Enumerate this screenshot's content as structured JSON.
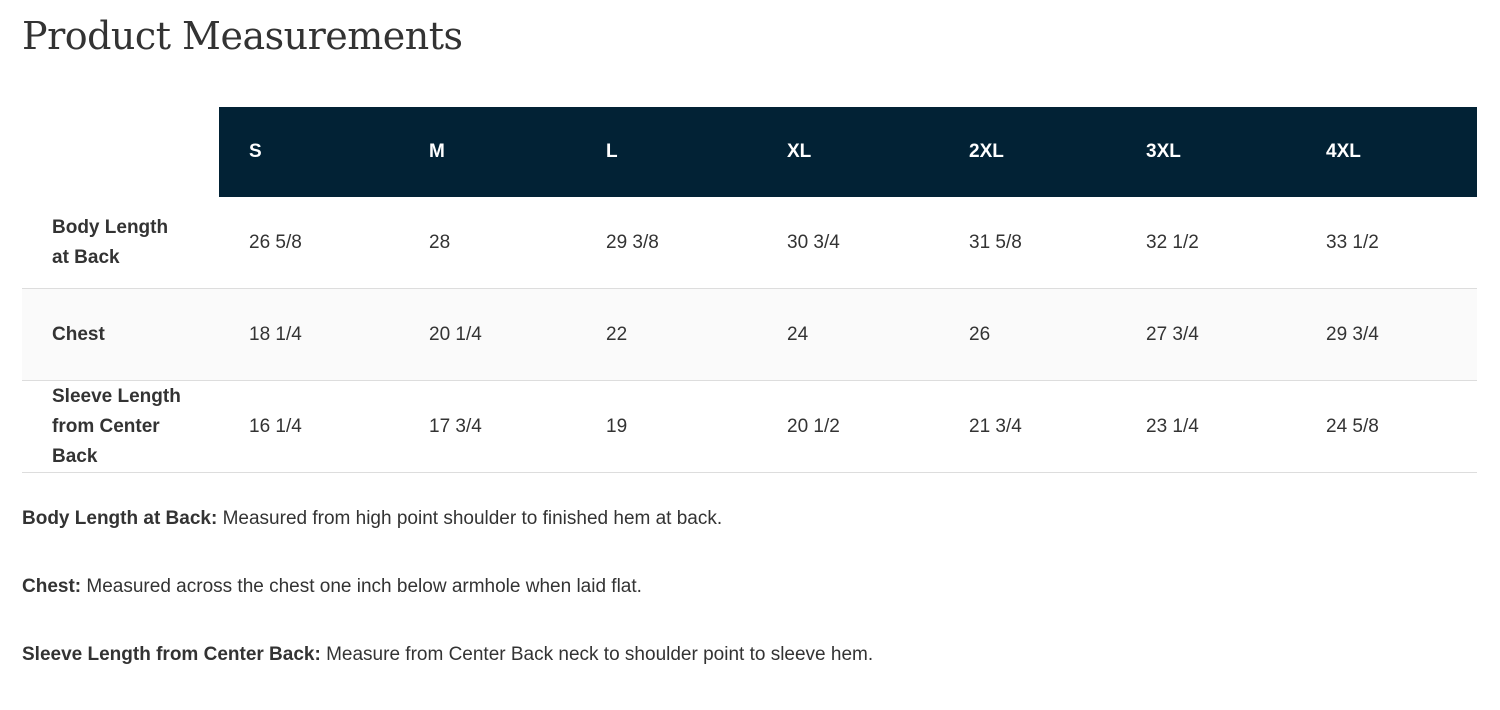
{
  "title": "Product Measurements",
  "table": {
    "sizes": [
      "S",
      "M",
      "L",
      "XL",
      "2XL",
      "3XL",
      "4XL"
    ],
    "rows": [
      {
        "label": "Body Length at Back",
        "values": [
          "26 5/8",
          "28",
          "29 3/8",
          "30 3/4",
          "31 5/8",
          "32 1/2",
          "33 1/2"
        ]
      },
      {
        "label": "Chest",
        "values": [
          "18 1/4",
          "20 1/4",
          "22",
          "24",
          "26",
          "27 3/4",
          "29 3/4"
        ]
      },
      {
        "label": "Sleeve Length from Center Back",
        "values": [
          "16 1/4",
          "17 3/4",
          "19",
          "20 1/2",
          "21 3/4",
          "23 1/4",
          "24 5/8"
        ]
      }
    ]
  },
  "notes": [
    {
      "term": "Body Length at Back:",
      "text": " Measured from high point shoulder to finished hem at back."
    },
    {
      "term": "Chest:",
      "text": " Measured across the chest one inch below armhole when laid flat."
    },
    {
      "term": "Sleeve Length from Center Back:",
      "text": " Measure from Center Back neck to shoulder point to sleeve hem."
    }
  ],
  "colors": {
    "header_bg": "#022235",
    "header_text": "#ffffff",
    "alt_row_bg": "#fafafa"
  }
}
